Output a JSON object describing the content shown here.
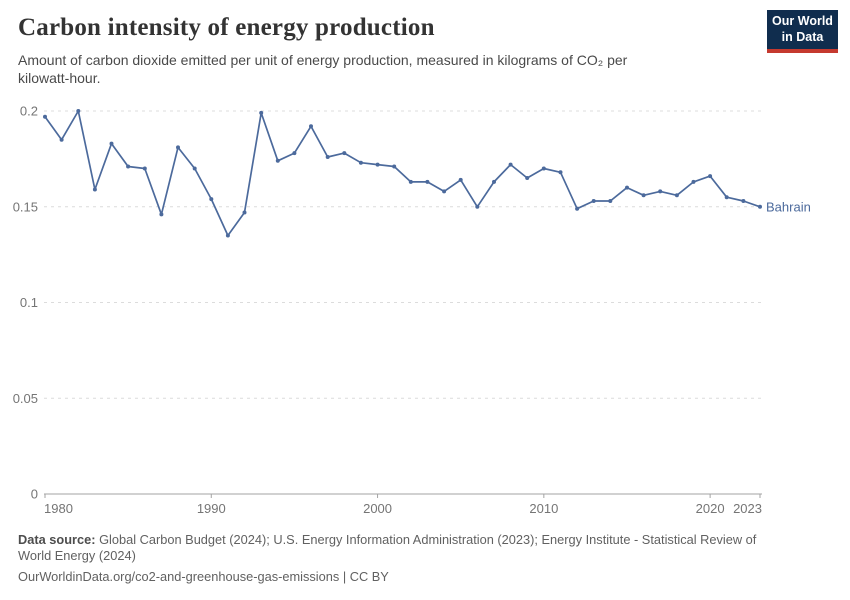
{
  "header": {
    "title": "Carbon intensity of energy production",
    "subtitle": "Amount of carbon dioxide emitted per unit of energy production, measured in kilograms of CO₂ per kilowatt-hour.",
    "logo": {
      "line1": "Our World",
      "line2": "in Data"
    }
  },
  "colors": {
    "series_blue": "#4c6a9c",
    "logo_navy": "#102d4e",
    "logo_red": "#c5392f"
  },
  "chart_data": {
    "type": "line",
    "title": "Carbon intensity of energy production",
    "unit": "kilograms of CO₂ per kilowatt-hour",
    "xlim": [
      1980,
      2023
    ],
    "ylim": [
      0,
      0.2
    ],
    "grid": "horizontal-dashed",
    "legend_position": "end-of-line label",
    "x_ticks": [
      1980,
      1990,
      2000,
      2010,
      2020,
      2023
    ],
    "y_ticks": [
      0,
      0.05,
      0.1,
      0.15,
      0.2
    ],
    "y_tick_labels": [
      "0",
      "0.05",
      "0.1",
      "0.15",
      "0.2"
    ],
    "x": [
      1980,
      1981,
      1982,
      1983,
      1984,
      1985,
      1986,
      1987,
      1988,
      1989,
      1990,
      1991,
      1992,
      1993,
      1994,
      1995,
      1996,
      1997,
      1998,
      1999,
      2000,
      2001,
      2002,
      2003,
      2004,
      2005,
      2006,
      2007,
      2008,
      2009,
      2010,
      2011,
      2012,
      2013,
      2014,
      2015,
      2016,
      2017,
      2018,
      2019,
      2020,
      2021,
      2022,
      2023
    ],
    "series": [
      {
        "name": "Bahrain",
        "color": "#4c6a9c",
        "values": [
          0.197,
          0.185,
          0.2,
          0.159,
          0.183,
          0.171,
          0.17,
          0.146,
          0.181,
          0.17,
          0.154,
          0.135,
          0.147,
          0.199,
          0.174,
          0.178,
          0.192,
          0.176,
          0.178,
          0.173,
          0.172,
          0.171,
          0.163,
          0.163,
          0.158,
          0.164,
          0.15,
          0.163,
          0.172,
          0.165,
          0.17,
          0.168,
          0.149,
          0.153,
          0.153,
          0.16,
          0.156,
          0.158,
          0.156,
          0.163,
          0.166,
          0.155,
          0.153,
          0.15
        ]
      }
    ]
  },
  "footer": {
    "source_bold": "Data source:",
    "source_rest": " Global Carbon Budget (2024); U.S. Energy Information Administration (2023); Energy Institute - Statistical Review of World Energy (2024)",
    "url_line": "OurWorldinData.org/co2-and-greenhouse-gas-emissions | CC BY"
  }
}
